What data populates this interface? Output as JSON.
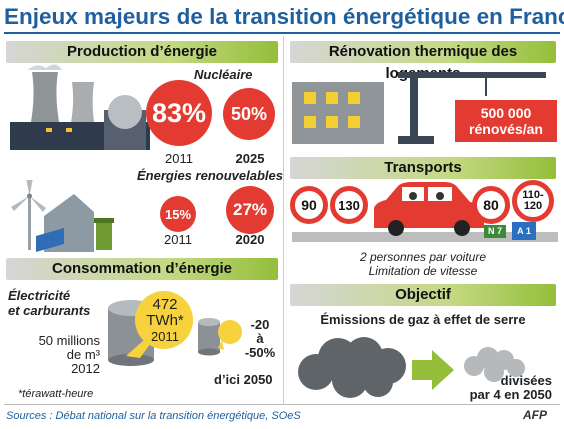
{
  "title": "Enjeux majeurs de la transition énergétique en France",
  "colors": {
    "title": "#1f5f9e",
    "accent_red": "#e33b32",
    "header_green": "#94be3a"
  },
  "production": {
    "header": "Production d’énergie",
    "nuclear_label": "Nucléaire",
    "nuclear_value_1": "83%",
    "nuclear_year_1": "2011",
    "nuclear_value_2": "50%",
    "nuclear_year_2": "2025",
    "renew_label": "Énergies renouvelables",
    "renew_value_1": "15%",
    "renew_year_1": "2011",
    "renew_value_2": "27%",
    "renew_year_2": "2020"
  },
  "consumption": {
    "header": "Consommation d’énergie",
    "label_line1": "Électricité",
    "label_line2": "et carburants",
    "value": "472",
    "unit": "TWh*",
    "year": "2011",
    "people_line1": "50 millions",
    "people_line2": "de m³",
    "people_year": "2012",
    "target_line1": "-20",
    "target_line2": "à",
    "target_line3": "-50%",
    "horizon": "d’ici 2050",
    "footnote": "*térawatt-heure"
  },
  "renovation": {
    "header": "Rénovation thermique des logements",
    "value_line1": "500 000",
    "value_line2": "rénovés/an"
  },
  "transports": {
    "header": "Transports",
    "sign_1": "90",
    "sign_2": "130",
    "sign_3": "80",
    "sign_4_line1": "110-",
    "sign_4_line2": "120",
    "road_sign_1": "N 7",
    "road_sign_2": "A 1",
    "caption_line1": "2 personnes par voiture",
    "caption_line2": "Limitation de vitesse"
  },
  "objective": {
    "header": "Objectif",
    "subtitle": "Émissions de gaz à effet de serre",
    "result_line1": "divisées",
    "result_line2": "par 4 en 2050"
  },
  "source": "Sources : Débat national sur la transition énergétique, SOeS",
  "credit": "AFP"
}
